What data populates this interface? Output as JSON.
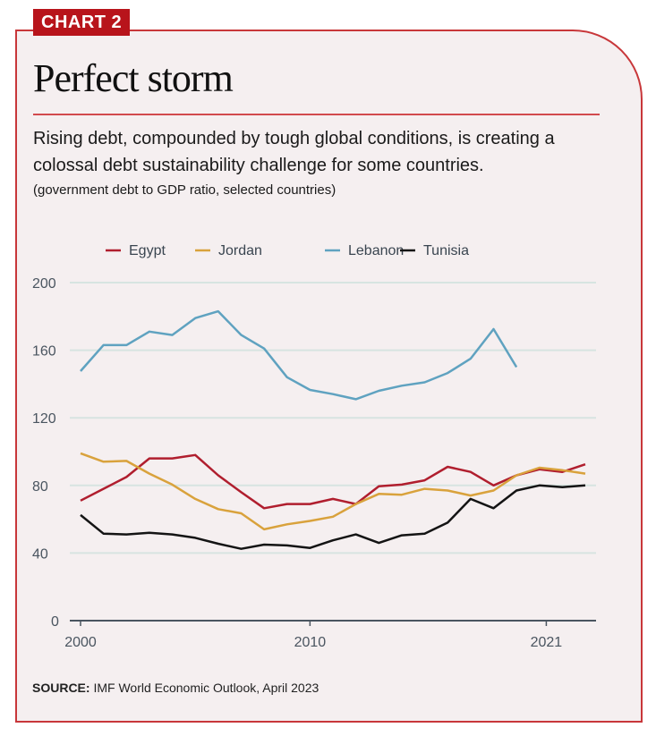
{
  "badge": "CHART 2",
  "title": "Perfect storm",
  "subtitle": "Rising debt, compounded by tough global conditions, is creating a colossal debt sustainability challenge for some countries.",
  "note": "(government debt to GDP ratio, selected countries)",
  "source_label": "SOURCE:",
  "source_text": " IMF World Economic Outlook, April 2023",
  "colors": {
    "Egypt": "#b01e2e",
    "Jordan": "#d9a23c",
    "Lebanon": "#5fa2c0",
    "Tunisia": "#141414",
    "grid": "#d7e4e1",
    "axis": "#4a5560"
  },
  "chart_data": {
    "type": "line",
    "title": "Perfect storm",
    "xlabel": "",
    "ylabel": "government debt to GDP ratio",
    "x": [
      2000,
      2001,
      2002,
      2003,
      2004,
      2005,
      2006,
      2007,
      2008,
      2009,
      2010,
      2011,
      2012,
      2013,
      2014,
      2015,
      2016,
      2017,
      2018,
      2019,
      2020,
      2021,
      2022
    ],
    "xlim": [
      2000,
      2022
    ],
    "x_ticks": [
      {
        "value": 2000,
        "label": "2000"
      },
      {
        "value": 2010,
        "label": "2010"
      },
      {
        "value": 2020.3,
        "label": "2021"
      }
    ],
    "ylim": [
      0,
      200
    ],
    "y_ticks": [
      0,
      40,
      80,
      120,
      160,
      200
    ],
    "grid": true,
    "legend": "top",
    "series": [
      {
        "name": "Egypt",
        "values": [
          71,
          78,
          85,
          96,
          96,
          98,
          86,
          76,
          66.5,
          69,
          69,
          72,
          69,
          79.5,
          80.5,
          83,
          91,
          88,
          80,
          86,
          89.5,
          88,
          92.5
        ]
      },
      {
        "name": "Jordan",
        "values": [
          99,
          94,
          94.5,
          87,
          80.5,
          72,
          66,
          63.5,
          54,
          57,
          59,
          61.5,
          69,
          75,
          74.5,
          78,
          77,
          74,
          77,
          86,
          90.5,
          89,
          87
        ]
      },
      {
        "name": "Lebanon",
        "values": [
          147.6,
          163,
          163,
          171,
          169,
          179,
          183,
          169,
          161,
          144,
          136.5,
          134,
          131,
          136,
          139,
          141,
          146.5,
          155,
          172.5,
          150,
          null,
          null,
          null
        ]
      },
      {
        "name": "Tunisia",
        "values": [
          62.5,
          51.5,
          51,
          52,
          51,
          49,
          45.5,
          42.5,
          45,
          44.5,
          43,
          47.5,
          51,
          46,
          50.5,
          51.5,
          58,
          72,
          66.5,
          77,
          80,
          79,
          80
        ]
      }
    ]
  }
}
